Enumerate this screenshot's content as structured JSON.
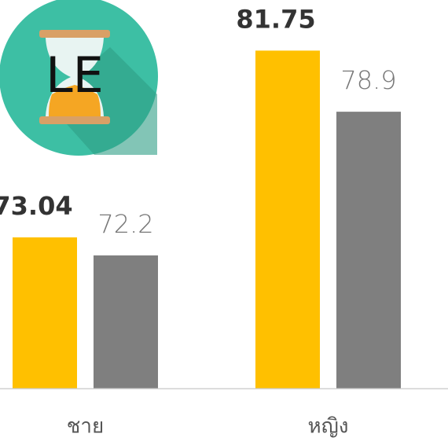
{
  "chart_data": {
    "type": "bar",
    "icon_label": "LE",
    "categories": [
      "ชาย",
      "หญิง"
    ],
    "series": [
      {
        "color": "#ffc000",
        "values": [
          73.04,
          81.75
        ]
      },
      {
        "color": "#7f7f7f",
        "values": [
          72.2,
          78.9
        ]
      }
    ],
    "ylim": [
      66,
      84
    ]
  }
}
